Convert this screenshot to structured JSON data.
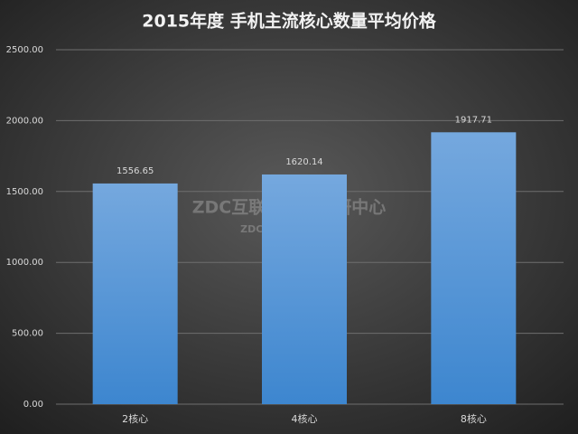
{
  "chart_data": {
    "type": "bar",
    "title": "2015年度 手机主流核心数量平均价格",
    "categories": [
      "2核心",
      "4核心",
      "8核心"
    ],
    "values": [
      1556.65,
      1620.14,
      1917.71
    ],
    "color": "#5b9bd5",
    "ylim": [
      0,
      2500
    ],
    "yticks": [
      {
        "value": 0,
        "label": "0.00"
      },
      {
        "value": 500,
        "label": "500.00"
      },
      {
        "value": 1000,
        "label": "1000.00"
      },
      {
        "value": 1500,
        "label": "1500.00"
      },
      {
        "value": 2000,
        "label": "2000.00"
      },
      {
        "value": 2500,
        "label": "2500.00"
      }
    ],
    "grid": true,
    "watermark": "ZDC互联网消费调研中心",
    "watermark_url": "ZDC.ZOL.COM.CN"
  }
}
